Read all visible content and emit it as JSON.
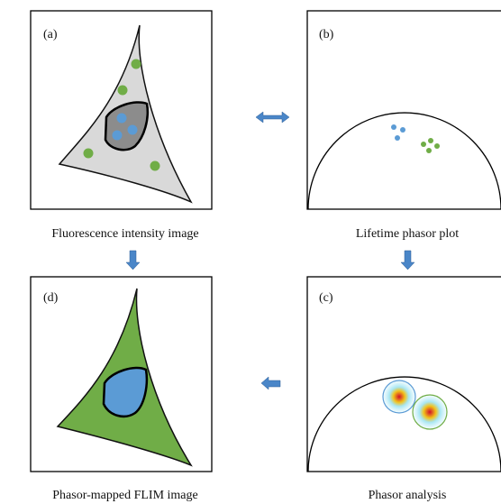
{
  "panels": [
    {
      "label": "(a)",
      "caption": "Fluorescence intensity image"
    },
    {
      "label": "(b)",
      "caption": "Lifetime phasor plot"
    },
    {
      "label": "(c)",
      "caption": "Phasor analysis"
    },
    {
      "label": "(d)",
      "caption": "Phasor-mapped FLIM image"
    }
  ]
}
